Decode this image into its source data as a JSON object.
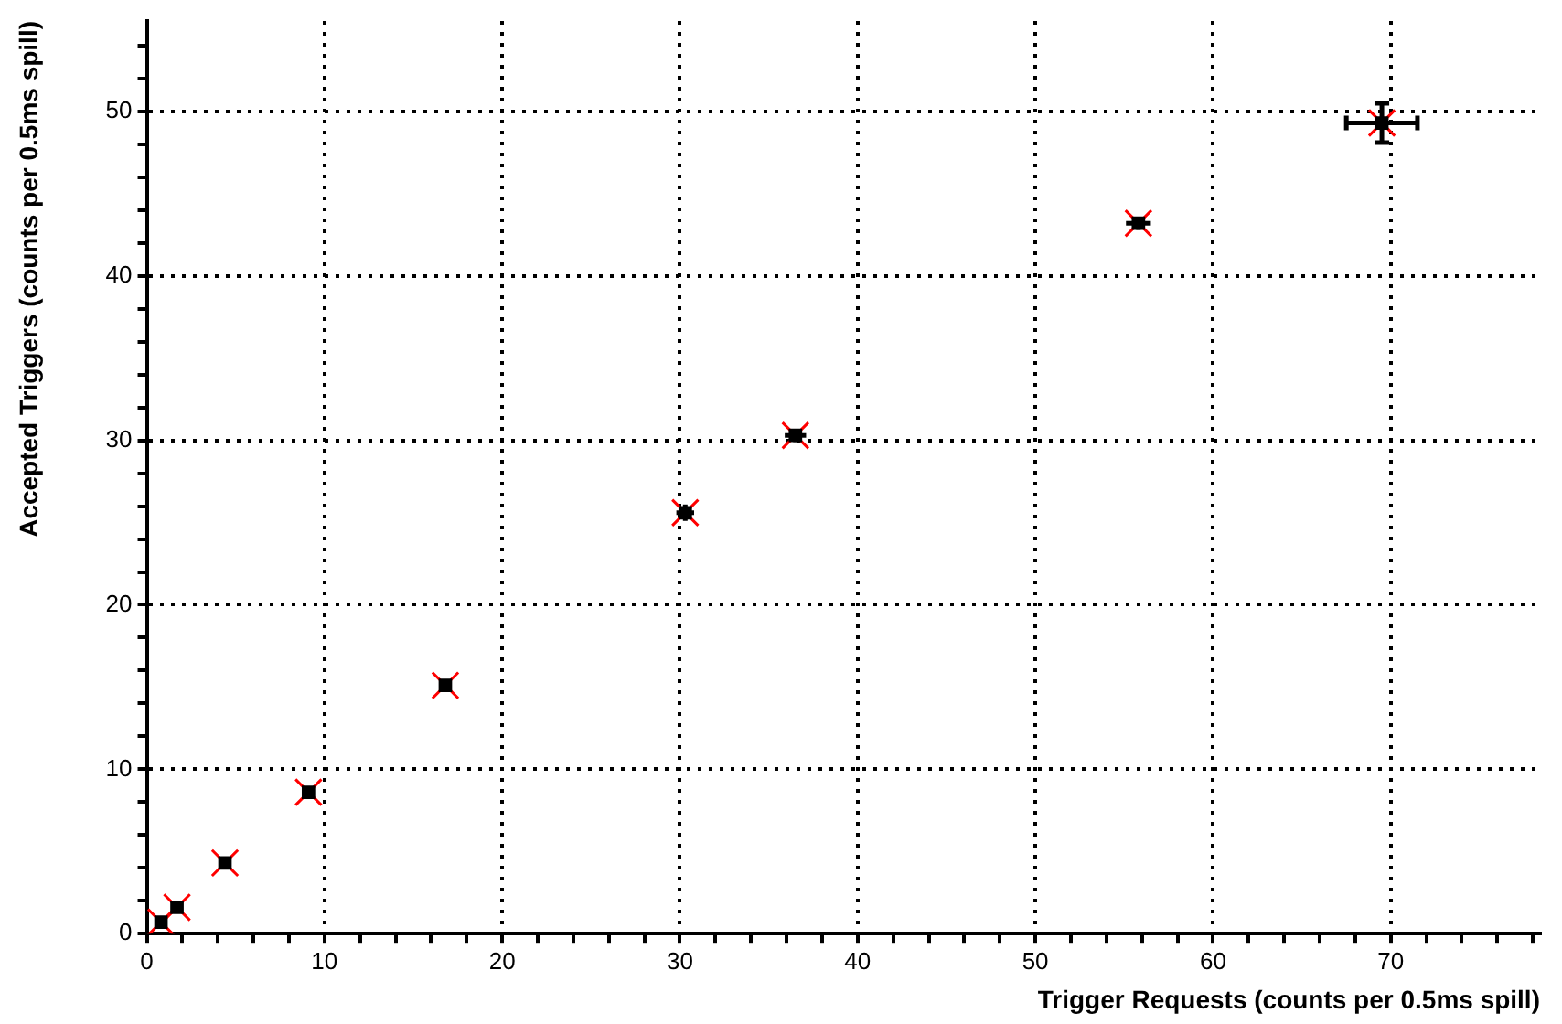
{
  "chart_data": {
    "type": "scatter",
    "xlabel": "Trigger Requests (counts per 0.5ms spill)",
    "ylabel": "Accepted Triggers (counts per 0.5ms spill)",
    "xlim": [
      0,
      78.4
    ],
    "ylim": [
      0,
      55.5
    ],
    "xticks": [
      0,
      {
        "value": 2,
        "label": null
      },
      {
        "value": 4,
        "label": null
      },
      {
        "value": 6,
        "label": null
      },
      {
        "value": 8,
        "label": null
      },
      10,
      {
        "value": 12,
        "label": null
      },
      {
        "value": 14,
        "label": null
      },
      {
        "value": 16,
        "label": null
      },
      {
        "value": 18,
        "label": null
      },
      20,
      {
        "value": 22,
        "label": null
      },
      {
        "value": 24,
        "label": null
      },
      {
        "value": 26,
        "label": null
      },
      {
        "value": 28,
        "label": null
      },
      30,
      {
        "value": 32,
        "label": null
      },
      {
        "value": 34,
        "label": null
      },
      {
        "value": 36,
        "label": null
      },
      {
        "value": 38,
        "label": null
      },
      40,
      {
        "value": 42,
        "label": null
      },
      {
        "value": 44,
        "label": null
      },
      {
        "value": 46,
        "label": null
      },
      {
        "value": 48,
        "label": null
      },
      50,
      {
        "value": 52,
        "label": null
      },
      {
        "value": 54,
        "label": null
      },
      {
        "value": 56,
        "label": null
      },
      {
        "value": 58,
        "label": null
      },
      60,
      {
        "value": 62,
        "label": null
      },
      {
        "value": 64,
        "label": null
      },
      {
        "value": 66,
        "label": null
      },
      {
        "value": 68,
        "label": null
      },
      70,
      {
        "value": 72,
        "label": null
      },
      {
        "value": 74,
        "label": null
      },
      {
        "value": 76,
        "label": null
      },
      {
        "value": 78,
        "label": null
      }
    ],
    "yticks": [
      0,
      {
        "value": 2,
        "label": null
      },
      {
        "value": 4,
        "label": null
      },
      {
        "value": 6,
        "label": null
      },
      {
        "value": 8,
        "label": null
      },
      10,
      {
        "value": 12,
        "label": null
      },
      {
        "value": 14,
        "label": null
      },
      {
        "value": 16,
        "label": null
      },
      {
        "value": 18,
        "label": null
      },
      20,
      {
        "value": 22,
        "label": null
      },
      {
        "value": 24,
        "label": null
      },
      {
        "value": 26,
        "label": null
      },
      {
        "value": 28,
        "label": null
      },
      30,
      {
        "value": 32,
        "label": null
      },
      {
        "value": 34,
        "label": null
      },
      {
        "value": 36,
        "label": null
      },
      {
        "value": 38,
        "label": null
      },
      40,
      {
        "value": 42,
        "label": null
      },
      {
        "value": 44,
        "label": null
      },
      {
        "value": 46,
        "label": null
      },
      {
        "value": 48,
        "label": null
      },
      50,
      {
        "value": 52,
        "label": null
      },
      {
        "value": 54,
        "label": null
      }
    ],
    "grid": true,
    "legend": false,
    "series": [
      {
        "color": "#000000",
        "marker": "square",
        "x": [
          0.8,
          1.7,
          4.4,
          9.1,
          16.8,
          30.3,
          36.5,
          55.8,
          69.5
        ],
        "values": [
          0.7,
          1.6,
          4.3,
          8.6,
          15.1,
          25.6,
          30.3,
          43.2,
          49.3
        ],
        "errors": [
          null,
          null,
          null,
          null,
          null,
          0.5,
          0.4,
          0.4,
          1.2
        ],
        "xerrors": [
          null,
          null,
          null,
          null,
          null,
          0.5,
          0.6,
          0.7,
          2.0
        ]
      },
      {
        "color": "#ff0000",
        "marker": "cross",
        "x": [
          0.8,
          1.7,
          4.4,
          9.1,
          16.8,
          30.3,
          36.5,
          55.8,
          69.5
        ],
        "values": [
          0.7,
          1.6,
          4.3,
          8.6,
          15.1,
          25.6,
          30.3,
          43.2,
          49.3
        ]
      }
    ]
  }
}
